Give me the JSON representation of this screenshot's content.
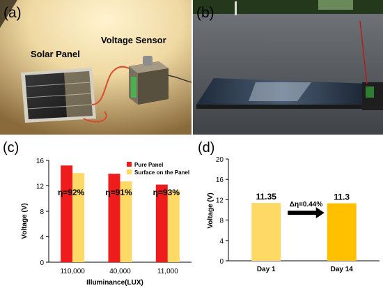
{
  "panels": {
    "a": {
      "label": "(a)",
      "captions": {
        "solar_panel": "Solar Panel",
        "voltage_sensor": "Voltage Sensor"
      }
    },
    "b": {
      "label": "(b)"
    },
    "c": {
      "label": "(c)"
    },
    "d": {
      "label": "(d)"
    }
  },
  "chart_data": [
    {
      "type": "bar",
      "panel": "c",
      "categories": [
        "110,000",
        "40,000",
        "11,000"
      ],
      "series": [
        {
          "name": "Pure Panel",
          "color": "#ee1c1c",
          "values": [
            15.2,
            13.9,
            12.2
          ]
        },
        {
          "name": "Surface on the Panel",
          "color": "#ffd966",
          "values": [
            14.0,
            12.7,
            11.3
          ]
        }
      ],
      "annotations": [
        "η=92%",
        "η=91%",
        "η=93%"
      ],
      "xlabel": "Illuminance(LUX)",
      "ylabel": "Voltage (V)",
      "ylim": [
        0,
        16
      ],
      "yticks": [
        0,
        4,
        8,
        12,
        16
      ],
      "legend": "top-right"
    },
    {
      "type": "bar",
      "panel": "d",
      "categories": [
        "Day 1",
        "Day 14"
      ],
      "values": [
        11.35,
        11.3
      ],
      "colors": [
        "#ffd966",
        "#ffc000"
      ],
      "data_labels": [
        "11.35",
        "11.3"
      ],
      "annotation": "Δη=0.44%",
      "xlabel": "",
      "ylabel": "Voltage (V)",
      "ylim": [
        0,
        20
      ],
      "yticks": [
        0,
        4,
        8,
        12,
        16,
        20
      ]
    }
  ]
}
